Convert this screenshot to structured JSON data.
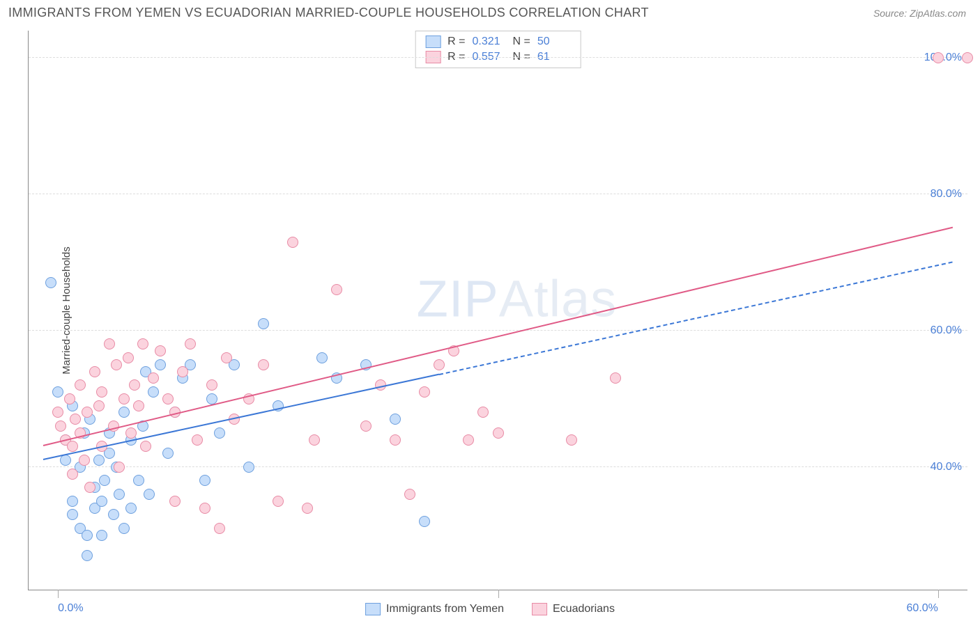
{
  "header": {
    "title": "IMMIGRANTS FROM YEMEN VS ECUADORIAN MARRIED-COUPLE HOUSEHOLDS CORRELATION CHART",
    "source_prefix": "Source: ",
    "source_name": "ZipAtlas.com"
  },
  "watermark": {
    "bold": "ZIP",
    "thin": "Atlas"
  },
  "chart": {
    "type": "scatter",
    "background_color": "#ffffff",
    "grid_color": "#dddddd",
    "axis_color": "#888888",
    "y_label": "Married-couple Households",
    "y_label_fontsize": 15,
    "x_range": [
      -2,
      62
    ],
    "y_range": [
      22,
      104
    ],
    "y_ticks": [
      {
        "value": 40,
        "label": "40.0%"
      },
      {
        "value": 60,
        "label": "60.0%"
      },
      {
        "value": 80,
        "label": "80.0%"
      },
      {
        "value": 100,
        "label": "100.0%"
      }
    ],
    "x_ticks": [
      {
        "value": 0,
        "label": "0.0%"
      },
      {
        "value": 30,
        "label": ""
      },
      {
        "value": 60,
        "label": "60.0%"
      }
    ],
    "tick_label_color": "#4a7fd6",
    "tick_label_fontsize": 16,
    "point_radius": 8,
    "series": [
      {
        "name": "Immigrants from Yemen",
        "fill": "#c7defa",
        "stroke": "#6ea0de",
        "r": 0.321,
        "n": 50,
        "trend": {
          "x1": -1,
          "y1": 41,
          "x2_solid": 26,
          "y2_solid": 53.5,
          "x2_dash": 61,
          "y2_dash": 70,
          "color": "#3b77d6",
          "width": 2.5
        },
        "points": [
          [
            -0.5,
            67
          ],
          [
            0,
            51
          ],
          [
            0.5,
            44
          ],
          [
            0.5,
            41
          ],
          [
            1,
            49
          ],
          [
            1,
            35
          ],
          [
            1,
            33
          ],
          [
            1.5,
            31
          ],
          [
            1.5,
            40
          ],
          [
            1.8,
            45
          ],
          [
            2,
            27
          ],
          [
            2,
            30
          ],
          [
            2.2,
            47
          ],
          [
            2.5,
            37
          ],
          [
            2.5,
            34
          ],
          [
            2.8,
            41
          ],
          [
            3,
            30
          ],
          [
            3,
            35
          ],
          [
            3.2,
            38
          ],
          [
            3.5,
            42
          ],
          [
            3.5,
            45
          ],
          [
            3.8,
            33
          ],
          [
            4,
            40
          ],
          [
            4.2,
            36
          ],
          [
            4.5,
            48
          ],
          [
            4.5,
            31
          ],
          [
            5,
            44
          ],
          [
            5,
            34
          ],
          [
            5.5,
            38
          ],
          [
            5.8,
            46
          ],
          [
            6,
            54
          ],
          [
            6.2,
            36
          ],
          [
            6.5,
            51
          ],
          [
            7,
            55
          ],
          [
            7.5,
            42
          ],
          [
            8,
            48
          ],
          [
            8.5,
            53
          ],
          [
            9,
            55
          ],
          [
            10,
            38
          ],
          [
            10.5,
            50
          ],
          [
            11,
            45
          ],
          [
            12,
            55
          ],
          [
            13,
            40
          ],
          [
            14,
            61
          ],
          [
            15,
            49
          ],
          [
            18,
            56
          ],
          [
            19,
            53
          ],
          [
            21,
            55
          ],
          [
            23,
            47
          ],
          [
            25,
            32
          ]
        ]
      },
      {
        "name": "Ecuadorians",
        "fill": "#fbd3de",
        "stroke": "#e88ba5",
        "r": 0.557,
        "n": 61,
        "trend": {
          "x1": -1,
          "y1": 43,
          "x2_solid": 61,
          "y2_solid": 75,
          "color": "#e05a86",
          "width": 2.5
        },
        "points": [
          [
            0,
            48
          ],
          [
            0.2,
            46
          ],
          [
            0.5,
            44
          ],
          [
            0.8,
            50
          ],
          [
            1,
            43
          ],
          [
            1,
            39
          ],
          [
            1.2,
            47
          ],
          [
            1.5,
            52
          ],
          [
            1.5,
            45
          ],
          [
            1.8,
            41
          ],
          [
            2,
            48
          ],
          [
            2.2,
            37
          ],
          [
            2.5,
            54
          ],
          [
            2.8,
            49
          ],
          [
            3,
            43
          ],
          [
            3,
            51
          ],
          [
            3.5,
            58
          ],
          [
            3.8,
            46
          ],
          [
            4,
            55
          ],
          [
            4.2,
            40
          ],
          [
            4.5,
            50
          ],
          [
            4.8,
            56
          ],
          [
            5,
            45
          ],
          [
            5.2,
            52
          ],
          [
            5.5,
            49
          ],
          [
            5.8,
            58
          ],
          [
            6,
            43
          ],
          [
            6.5,
            53
          ],
          [
            7,
            57
          ],
          [
            7.5,
            50
          ],
          [
            8,
            35
          ],
          [
            8,
            48
          ],
          [
            8.5,
            54
          ],
          [
            9,
            58
          ],
          [
            9.5,
            44
          ],
          [
            10,
            34
          ],
          [
            10.5,
            52
          ],
          [
            11,
            31
          ],
          [
            11.5,
            56
          ],
          [
            12,
            47
          ],
          [
            13,
            50
          ],
          [
            14,
            55
          ],
          [
            15,
            35
          ],
          [
            16,
            73
          ],
          [
            17,
            34
          ],
          [
            17.5,
            44
          ],
          [
            19,
            66
          ],
          [
            21,
            46
          ],
          [
            22,
            52
          ],
          [
            23,
            44
          ],
          [
            24,
            36
          ],
          [
            25,
            51
          ],
          [
            26,
            55
          ],
          [
            27,
            57
          ],
          [
            28,
            44
          ],
          [
            29,
            48
          ],
          [
            30,
            45
          ],
          [
            35,
            44
          ],
          [
            38,
            53
          ],
          [
            60,
            100
          ],
          [
            62,
            100
          ]
        ]
      }
    ],
    "legend_box": {
      "r_label": "R  =",
      "n_label": "N  ="
    },
    "bottom_legend_fontsize": 16
  }
}
